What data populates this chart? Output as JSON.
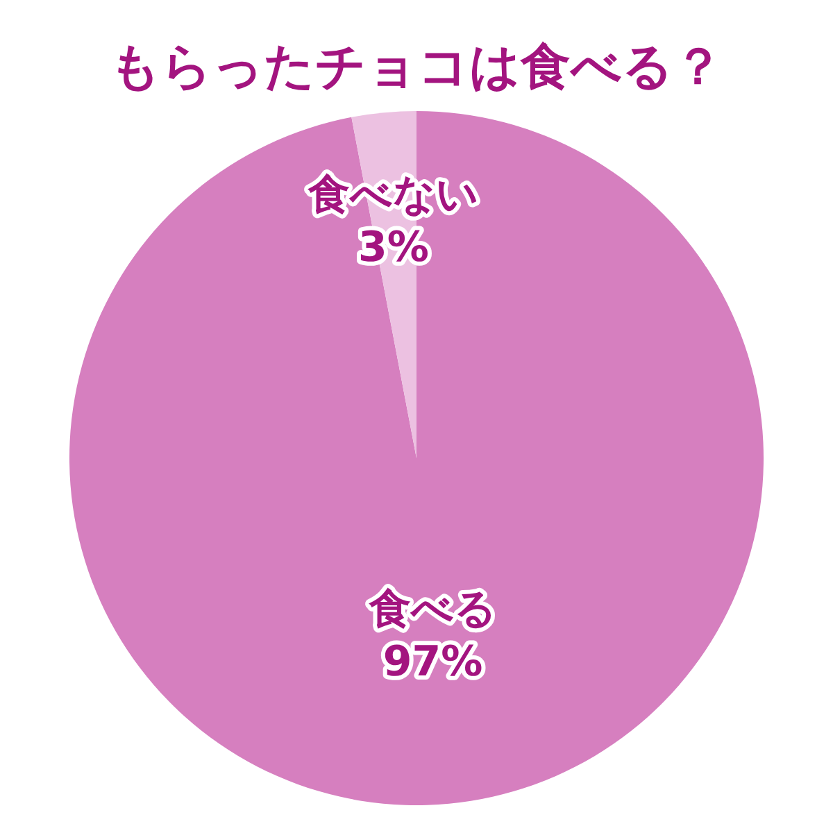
{
  "chart_data": {
    "type": "pie",
    "title": "もらったチョコは食べる？",
    "categories": [
      "食べる",
      "食べない"
    ],
    "values": [
      97,
      3
    ],
    "value_labels": [
      "97%",
      "3%"
    ],
    "colors": [
      "#d67fbf",
      "#ecc1e1"
    ]
  }
}
